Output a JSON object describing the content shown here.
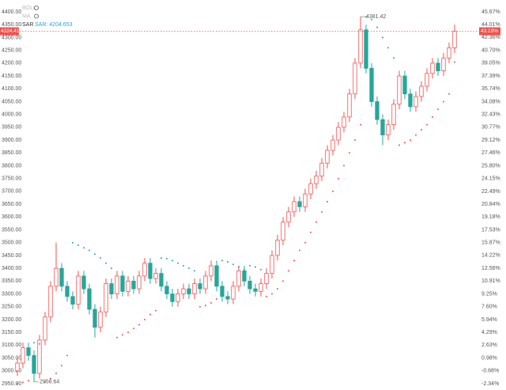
{
  "chart_data": {
    "type": "candlestick",
    "legend": [
      {
        "name": "BOLL"
      },
      {
        "name": "MA"
      },
      {
        "name": "SAR",
        "value_label": "SAR: 4204.653"
      }
    ],
    "up_color": "#ef5350",
    "down_color": "#26a69a",
    "open": [
      3000,
      3030,
      3090,
      3060,
      2990,
      3120,
      3210,
      3330,
      3400,
      3330,
      3290,
      3260,
      3370,
      3320,
      3240,
      3170,
      3230,
      3340,
      3300,
      3370,
      3310,
      3350,
      3320,
      3370,
      3420,
      3360,
      3380,
      3330,
      3300,
      3270,
      3300,
      3320,
      3300,
      3340,
      3320,
      3370,
      3410,
      3330,
      3290,
      3280,
      3330,
      3390,
      3350,
      3320,
      3310,
      3340,
      3380,
      3450,
      3510,
      3580,
      3620,
      3660,
      3640,
      3690,
      3730,
      3760,
      3810,
      3860,
      3900,
      3950,
      3990,
      4080,
      4200,
      4330,
      4180,
      4050,
      3980,
      3920,
      3960,
      4040,
      4150,
      4080,
      4030,
      4070,
      4110,
      4160,
      4200,
      4170,
      4220,
      4260
    ],
    "high": [
      3050,
      3110,
      3110,
      3080,
      3140,
      3230,
      3350,
      3500,
      3420,
      3350,
      3310,
      3390,
      3390,
      3340,
      3260,
      3250,
      3360,
      3360,
      3390,
      3390,
      3370,
      3370,
      3390,
      3440,
      3440,
      3400,
      3400,
      3350,
      3320,
      3320,
      3340,
      3340,
      3360,
      3360,
      3390,
      3430,
      3430,
      3350,
      3310,
      3350,
      3410,
      3410,
      3370,
      3340,
      3360,
      3400,
      3470,
      3530,
      3600,
      3640,
      3680,
      3680,
      3710,
      3750,
      3780,
      3830,
      3880,
      3920,
      3970,
      4010,
      4100,
      4220,
      4381.42,
      4350,
      4200,
      4070,
      4000,
      3980,
      4060,
      4170,
      4170,
      4100,
      4090,
      4130,
      4180,
      4220,
      4220,
      4240,
      4280,
      4350
    ],
    "low": [
      2980,
      3010,
      3040,
      2956.64,
      2970,
      3100,
      3190,
      3310,
      3310,
      3270,
      3240,
      3240,
      3300,
      3220,
      3130,
      3150,
      3210,
      3280,
      3280,
      3290,
      3290,
      3300,
      3300,
      3350,
      3340,
      3340,
      3310,
      3280,
      3250,
      3250,
      3280,
      3280,
      3280,
      3300,
      3300,
      3350,
      3310,
      3270,
      3260,
      3260,
      3310,
      3330,
      3300,
      3290,
      3290,
      3320,
      3360,
      3430,
      3490,
      3560,
      3600,
      3620,
      3620,
      3670,
      3710,
      3740,
      3790,
      3840,
      3880,
      3930,
      3970,
      4060,
      4180,
      4160,
      4030,
      3960,
      3880,
      3900,
      3940,
      4020,
      4060,
      4010,
      4010,
      4050,
      4090,
      4140,
      4150,
      4150,
      4200,
      4240
    ],
    "close": [
      3030,
      3090,
      3060,
      2990,
      3120,
      3210,
      3330,
      3400,
      3330,
      3290,
      3260,
      3370,
      3320,
      3240,
      3170,
      3230,
      3340,
      3300,
      3370,
      3310,
      3350,
      3320,
      3370,
      3420,
      3360,
      3380,
      3330,
      3300,
      3270,
      3300,
      3320,
      3300,
      3340,
      3320,
      3370,
      3410,
      3330,
      3290,
      3280,
      3330,
      3390,
      3350,
      3320,
      3310,
      3340,
      3380,
      3450,
      3510,
      3580,
      3620,
      3660,
      3640,
      3690,
      3730,
      3760,
      3810,
      3860,
      3900,
      3950,
      3990,
      4080,
      4200,
      4330,
      4180,
      4050,
      3980,
      3920,
      3960,
      4040,
      4150,
      4080,
      4030,
      4070,
      4110,
      4160,
      4200,
      4170,
      4220,
      4260,
      4324.41
    ],
    "sar": [
      2950,
      2955,
      2962,
      3110,
      3105,
      2957,
      2970,
      2990,
      3020,
      3060,
      3500,
      3490,
      3480,
      3470,
      3455,
      3440,
      3420,
      3400,
      3130,
      3140,
      3150,
      3165,
      3180,
      3200,
      3220,
      3235,
      3440,
      3438,
      3430,
      3420,
      3410,
      3400,
      3390,
      3250,
      3255,
      3265,
      3280,
      3430,
      3425,
      3415,
      3405,
      3395,
      3410,
      3405,
      3395,
      3290,
      3300,
      3320,
      3350,
      3390,
      3430,
      3470,
      3500,
      3540,
      3580,
      3620,
      3660,
      3700,
      3750,
      3800,
      3850,
      3900,
      3960,
      4380,
      4370,
      4340,
      4300,
      4260,
      4220,
      3880,
      3890,
      3900,
      3920,
      3940,
      3960,
      3990,
      4020,
      4050,
      4080,
      4204.653
    ],
    "last_percent_label": "43.19%",
    "ylim": [
      2950,
      4400
    ],
    "yticks": [
      {
        "value": 4400,
        "label": "4400.00"
      },
      {
        "value": 4350,
        "label": "4350.00"
      },
      {
        "value": 4300,
        "label": "4300.00"
      },
      {
        "value": 4250,
        "label": "4250.00"
      },
      {
        "value": 4200,
        "label": "4200.00"
      },
      {
        "value": 4150,
        "label": "4150.00"
      },
      {
        "value": 4100,
        "label": "4100.00"
      },
      {
        "value": 4050,
        "label": "4050.00"
      },
      {
        "value": 4000,
        "label": "4000.00"
      },
      {
        "value": 3950,
        "label": "3950.00"
      },
      {
        "value": 3900,
        "label": "3900.00"
      },
      {
        "value": 3850,
        "label": "3850.00"
      },
      {
        "value": 3800,
        "label": "3800.00"
      },
      {
        "value": 3750,
        "label": "3750.00"
      },
      {
        "value": 3700,
        "label": "3700.00"
      },
      {
        "value": 3650,
        "label": "3650.00"
      },
      {
        "value": 3600,
        "label": "3600.00"
      },
      {
        "value": 3550,
        "label": "3550.00"
      },
      {
        "value": 3500,
        "label": "3500.00"
      },
      {
        "value": 3450,
        "label": "3450.00"
      },
      {
        "value": 3400,
        "label": "3400.00"
      },
      {
        "value": 3350,
        "label": "3350.00"
      },
      {
        "value": 3300,
        "label": "3300.00"
      },
      {
        "value": 3250,
        "label": "3250.00"
      },
      {
        "value": 3200,
        "label": "3200.00"
      },
      {
        "value": 3150,
        "label": "3150.00"
      },
      {
        "value": 3100,
        "label": "3100.00"
      },
      {
        "value": 3050,
        "label": "3050.00"
      },
      {
        "value": 3000,
        "label": "3000.00"
      },
      {
        "value": 2950,
        "label": "2950.00"
      }
    ],
    "y2lim": [
      -2.34,
      45.67
    ],
    "y2ticks": [
      {
        "value": 45.67,
        "label": "45.67%"
      },
      {
        "value": 44.01,
        "label": "44.01%"
      },
      {
        "value": 42.36,
        "label": "42.36%"
      },
      {
        "value": 40.7,
        "label": "40.70%"
      },
      {
        "value": 39.05,
        "label": "39.05%"
      },
      {
        "value": 37.39,
        "label": "37.39%"
      },
      {
        "value": 35.74,
        "label": "35.74%"
      },
      {
        "value": 34.08,
        "label": "34.08%"
      },
      {
        "value": 32.43,
        "label": "32.43%"
      },
      {
        "value": 30.77,
        "label": "30.77%"
      },
      {
        "value": 29.12,
        "label": "29.12%"
      },
      {
        "value": 27.46,
        "label": "27.46%"
      },
      {
        "value": 25.8,
        "label": "25.80%"
      },
      {
        "value": 24.15,
        "label": "24.15%"
      },
      {
        "value": 22.49,
        "label": "22.49%"
      },
      {
        "value": 20.84,
        "label": "20.84%"
      },
      {
        "value": 19.18,
        "label": "19.18%"
      },
      {
        "value": 17.53,
        "label": "17.53%"
      },
      {
        "value": 15.87,
        "label": "15.87%"
      },
      {
        "value": 14.22,
        "label": "14.22%"
      },
      {
        "value": 12.56,
        "label": "12.56%"
      },
      {
        "value": 10.91,
        "label": "10.91%"
      },
      {
        "value": 9.25,
        "label": "9.25%"
      },
      {
        "value": 7.6,
        "label": "7.60%"
      },
      {
        "value": 5.94,
        "label": "5.94%"
      },
      {
        "value": 4.29,
        "label": "4.29%"
      },
      {
        "value": 2.63,
        "label": "2.63%"
      },
      {
        "value": 0.98,
        "label": "0.98%"
      },
      {
        "value": -0.68,
        "label": "-0.68%"
      },
      {
        "value": -2.34,
        "label": "-2.34%"
      }
    ]
  }
}
